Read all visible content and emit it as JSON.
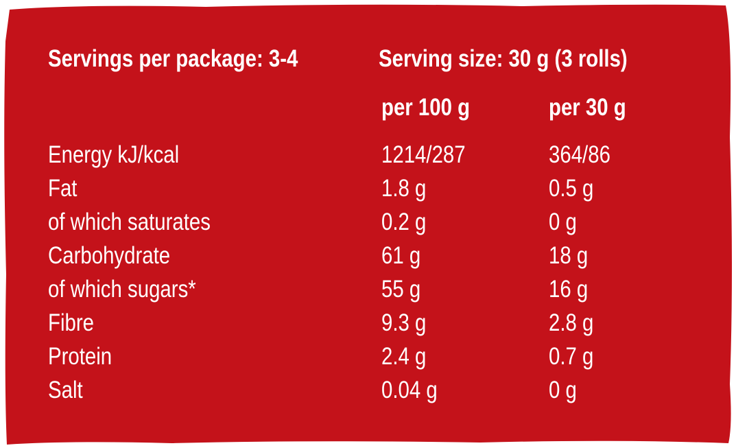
{
  "header": {
    "servings_per_package": "Servings per package: 3-4",
    "serving_size": "Serving size: 30 g (3 rolls)"
  },
  "table": {
    "columns": [
      "per 100 g",
      "per 30 g"
    ],
    "rows": [
      [
        "Energy kJ/kcal",
        "1214/287",
        "364/86"
      ],
      [
        "Fat",
        "1.8 g",
        "0.5 g"
      ],
      [
        "of which saturates",
        "0.2 g",
        "0 g"
      ],
      [
        "Carbohydrate",
        "61 g",
        "18 g"
      ],
      [
        "of which sugars*",
        "55 g",
        "16 g"
      ],
      [
        "Fibre",
        "9.3 g",
        "2.8 g"
      ],
      [
        "Protein",
        "2.4 g",
        "0.7 g"
      ],
      [
        "Salt",
        "0.04 g",
        "0 g"
      ]
    ]
  }
}
